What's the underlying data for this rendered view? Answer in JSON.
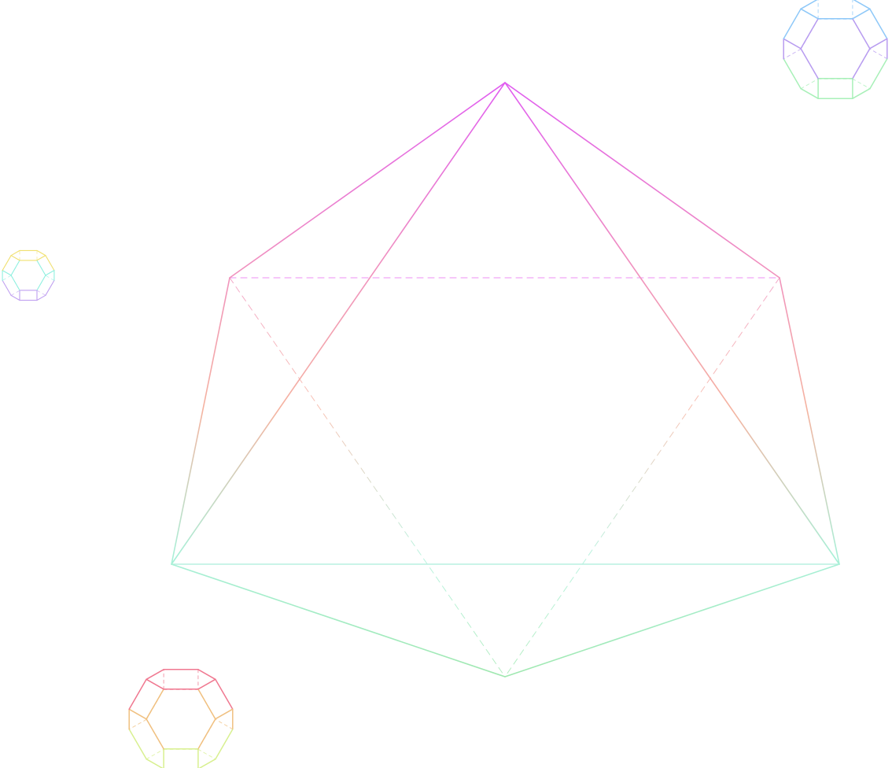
{
  "scene": {
    "background": "#ffffff",
    "edge_style": {
      "front": "solid",
      "back": "dashed"
    },
    "solids": [
      {
        "id": "octahedron",
        "shape": "octahedron",
        "palette": [
          "#e05cf0",
          "#f08fc0",
          "#f5b3a0",
          "#a8f0d8",
          "#a0e8b0"
        ]
      },
      {
        "id": "poly-top-right",
        "shape": "truncated-octahedron",
        "palette": [
          "#8ec8f8",
          "#b89cf0",
          "#a8f0b8"
        ]
      },
      {
        "id": "poly-left",
        "shape": "truncated-octahedron",
        "palette": [
          "#f0e070",
          "#90f0e0",
          "#c0a0f0"
        ]
      },
      {
        "id": "poly-bottom-left",
        "shape": "truncated-octahedron",
        "palette": [
          "#f07890",
          "#f0c080",
          "#d8f090"
        ]
      }
    ]
  }
}
